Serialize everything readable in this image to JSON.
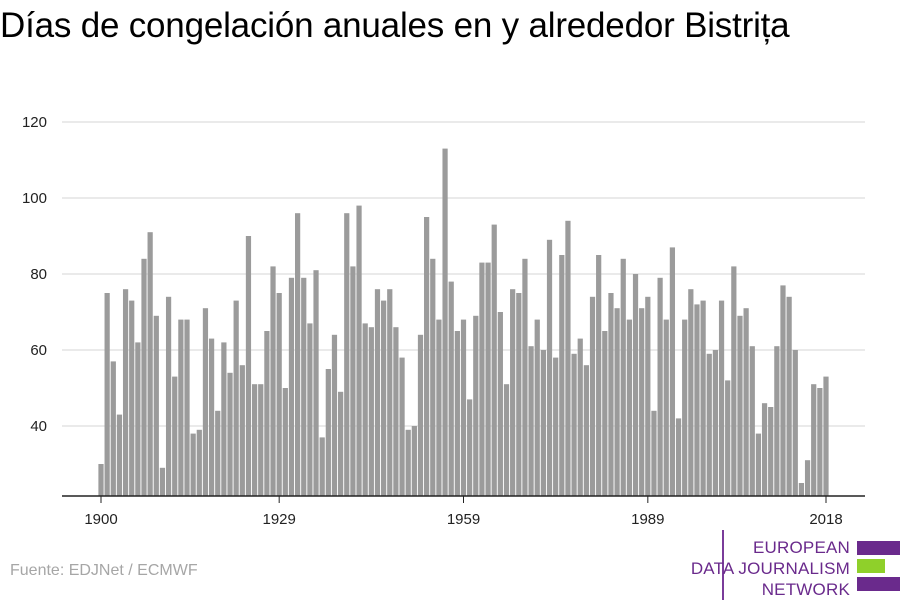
{
  "title": "Días de congelación anuales en y alrededor Bistrița",
  "source": "Fuente: EDJNet / ECMWF",
  "logo": {
    "lines": [
      "EUROPEAN",
      "DATA JOURNALISM",
      "NETWORK"
    ],
    "bar_colors": [
      "#6a2a8c",
      "#8fd02a",
      "#6a2a8c"
    ]
  },
  "colors": {
    "bar": "#9b9b9b",
    "grid": "#d6d6d6",
    "axis": "#222222"
  },
  "chart_data": {
    "type": "bar",
    "title": "Días de congelación anuales en y alrededor Bistrița",
    "xlabel": "",
    "ylabel": "",
    "x_ticks": [
      1900,
      1929,
      1959,
      1989,
      2018
    ],
    "y_ticks": [
      40,
      60,
      80,
      100,
      120
    ],
    "ylim": [
      21,
      120
    ],
    "grid": true,
    "x_start": 1900,
    "x_end": 2021,
    "values": [
      30,
      75,
      57,
      43,
      76,
      73,
      62,
      84,
      91,
      69,
      29,
      74,
      53,
      68,
      68,
      38,
      39,
      71,
      63,
      44,
      62,
      54,
      73,
      56,
      90,
      51,
      51,
      65,
      82,
      75,
      50,
      79,
      96,
      79,
      67,
      81,
      37,
      55,
      64,
      49,
      96,
      82,
      98,
      67,
      66,
      76,
      73,
      76,
      66,
      58,
      39,
      40,
      64,
      95,
      84,
      68,
      113,
      78,
      65,
      68,
      47,
      69,
      83,
      83,
      93,
      70,
      51,
      76,
      75,
      84,
      61,
      68,
      60,
      89,
      58,
      85,
      94,
      59,
      63,
      56,
      74,
      85,
      65,
      75,
      71,
      84,
      68,
      80,
      71,
      74,
      44,
      79,
      68,
      87,
      42,
      68,
      76,
      72,
      73,
      59,
      60,
      73,
      52,
      82,
      69,
      71,
      61,
      38,
      46,
      45,
      61,
      77,
      74,
      60,
      25,
      31,
      51,
      50,
      53
    ]
  }
}
